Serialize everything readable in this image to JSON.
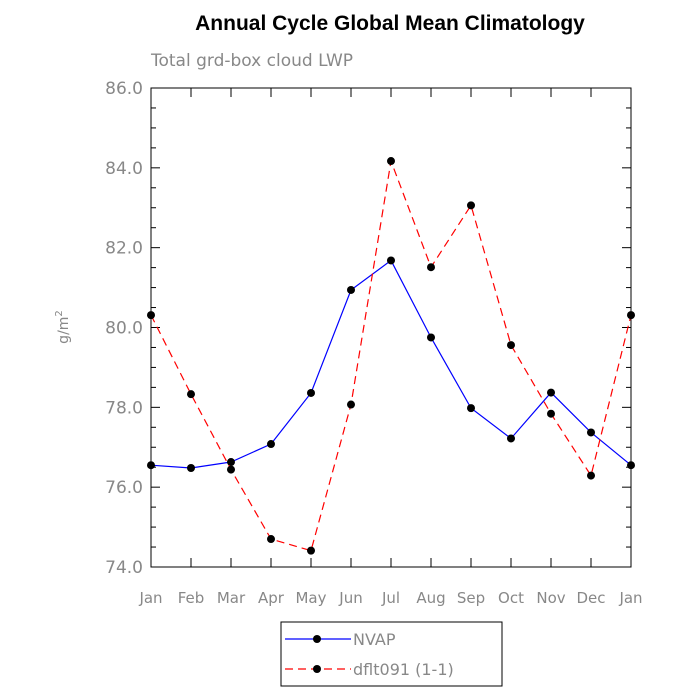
{
  "chart_data": {
    "type": "line",
    "title": "Annual Cycle Global Mean Climatology",
    "subtitle": "Total grd-box cloud LWP",
    "xlabel": "",
    "ylabel": "g/m",
    "ylabel_superscript": "2",
    "categories": [
      "Jan",
      "Feb",
      "Mar",
      "Apr",
      "May",
      "Jun",
      "Jul",
      "Aug",
      "Sep",
      "Oct",
      "Nov",
      "Dec",
      "Jan"
    ],
    "ylim": [
      74.0,
      86.0
    ],
    "yticks": [
      "74.0",
      "76.0",
      "78.0",
      "80.0",
      "82.0",
      "84.0",
      "86.0"
    ],
    "grid": false,
    "legend_position": "bottom-center",
    "series": [
      {
        "name": "NVAP",
        "color": "#0000ff",
        "dash": "solid",
        "values": [
          76.55,
          76.48,
          76.63,
          77.08,
          78.36,
          80.94,
          81.68,
          79.75,
          77.98,
          77.22,
          78.37,
          77.37,
          76.55
        ]
      },
      {
        "name": "dflt091 (1-1)",
        "color": "#ff0000",
        "dash": "dashed",
        "values": [
          80.31,
          78.33,
          76.44,
          74.7,
          74.41,
          78.07,
          84.17,
          81.51,
          83.06,
          79.56,
          77.84,
          76.29,
          80.31
        ]
      }
    ]
  }
}
